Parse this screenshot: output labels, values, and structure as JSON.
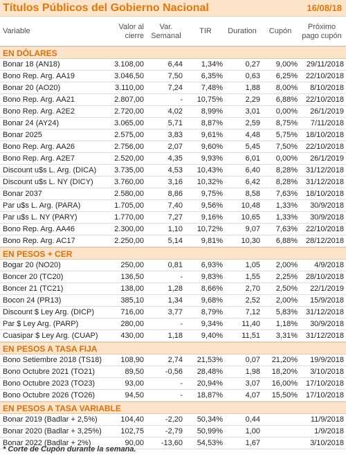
{
  "header": {
    "title": "Títulos Públicos del Gobierno Nacional",
    "date": "16/08/18"
  },
  "columns": {
    "variable": "Variable",
    "cierre": [
      "Valor al",
      "cierre"
    ],
    "var": [
      "Var.",
      "Semanal"
    ],
    "tir": "TIR",
    "duration": "Duration",
    "cupon": "Cupón",
    "proximo": [
      "Próximo",
      "pago cupón"
    ]
  },
  "sections": [
    {
      "title": "EN DÓLARES",
      "rows": [
        [
          "Bonar 18 (AN18)",
          "3.108,00",
          "6,44",
          "1,34%",
          "0,27",
          "9,00%",
          "29/11/2018"
        ],
        [
          "Bono Rep. Arg. AA19",
          "3.046,50",
          "7,50",
          "6,35%",
          "0,63",
          "6,25%",
          "22/10/2018"
        ],
        [
          "Bonar 20 (AO20)",
          "3.110,00",
          "7,24",
          "7,48%",
          "1,88",
          "8,00%",
          "8/10/2018"
        ],
        [
          "Bono Rep. Arg. AA21",
          "2.807,00",
          "-",
          "10,75%",
          "2,29",
          "6,88%",
          "22/10/2018"
        ],
        [
          "Bono Rep. Arg. A2E2",
          "2.720,00",
          "4,02",
          "8,99%",
          "3,01",
          "0,00%",
          "26/1/2019"
        ],
        [
          "Bonar 24 (AY24)",
          "3.065,00",
          "5,71",
          "8,87%",
          "2,59",
          "8,75%",
          "7/11/2018"
        ],
        [
          "Bonar 2025",
          "2.575,00",
          "3,83",
          "9,61%",
          "4,48",
          "5,75%",
          "18/10/2018"
        ],
        [
          "Bono Rep. Arg. AA26",
          "2.756,00",
          "2,07",
          "9,60%",
          "5,45",
          "7,50%",
          "22/10/2018"
        ],
        [
          "Bono Rep. Arg. A2E7",
          "2.520,00",
          "4,35",
          "9,93%",
          "6,01",
          "0,00%",
          "26/1/2019"
        ],
        [
          "Discount u$s L. Arg. (DICA)",
          "3.735,00",
          "4,53",
          "10,43%",
          "6,40",
          "8,28%",
          "31/12/2018"
        ],
        [
          "Discount u$s L. NY (DICY)",
          "3.760,00",
          "3,16",
          "10,32%",
          "6,42",
          "8,28%",
          "31/12/2018"
        ],
        [
          "Bonar 2037",
          "2.580,00",
          "8,86",
          "9,75%",
          "8,58",
          "7,63%",
          "18/10/2018"
        ],
        [
          "Par u$s L. Arg. (PARA)",
          "1.705,00",
          "7,40",
          "9,56%",
          "10,48",
          "1,33%",
          "30/9/2018"
        ],
        [
          "Par u$s L. NY (PARY)",
          "1.770,00",
          "7,27",
          "9,16%",
          "10,65",
          "1,33%",
          "30/9/2018"
        ],
        [
          "Bono Rep. Arg. AA46",
          "2.300,00",
          "1,10",
          "10,72%",
          "9,07",
          "7,63%",
          "22/10/2018"
        ],
        [
          "Bono Rep. Arg. AC17",
          "2.250,00",
          "5,14",
          "9,81%",
          "10,30",
          "6,88%",
          "28/12/2018"
        ]
      ]
    },
    {
      "title": "EN PESOS + CER",
      "rows": [
        [
          "Bogar 20 (NO20)",
          "250,00",
          "0,81",
          "6,93%",
          "1,05",
          "2,00%",
          "4/9/2018"
        ],
        [
          "Boncer 20 (TC20)",
          "136,50",
          "-",
          "9,83%",
          "1,55",
          "2,25%",
          "28/10/2018"
        ],
        [
          "Boncer 21 (TC21)",
          "138,00",
          "1,28",
          "8,66%",
          "2,70",
          "2,50%",
          "22/1/2019"
        ],
        [
          "Bocon 24 (PR13)",
          "385,10",
          "1,34",
          "9,68%",
          "2,52",
          "2,00%",
          "15/9/2018"
        ],
        [
          "Discount $ Ley Arg. (DICP)",
          "716,00",
          "3,77",
          "8,79%",
          "7,12",
          "5,83%",
          "31/12/2018"
        ],
        [
          "Par $ Ley Arg. (PARP)",
          "280,00",
          "-",
          "9,34%",
          "11,40",
          "1,18%",
          "30/9/2018"
        ],
        [
          "Cuasipar $ Ley Arg. (CUAP)",
          "430,00",
          "1,18",
          "9,40%",
          "11,51",
          "3,31%",
          "31/12/2018"
        ]
      ]
    },
    {
      "title": "EN PESOS A TASA FIJA",
      "rows": [
        [
          "Bono Setiembre 2018 (TS18)",
          "108,90",
          "2,74",
          "21,53%",
          "0,07",
          "21,20%",
          "19/9/2018"
        ],
        [
          "Bono Octubre 2021 (TO21)",
          "89,50",
          "-0,56",
          "28,48%",
          "1,98",
          "18,20%",
          "3/10/2018"
        ],
        [
          "Bono Octubre 2023 (TO23)",
          "93,00",
          "-",
          "20,94%",
          "3,07",
          "16,00%",
          "17/10/2018"
        ],
        [
          "Bono Octubre 2026 (TO26)",
          "94,50",
          "-",
          "18,87%",
          "4,07",
          "15,50%",
          "17/10/2018"
        ]
      ]
    },
    {
      "title": "EN PESOS A TASA VARIABLE",
      "rows": [
        [
          "Bonar 2019 (Badlar + 2,5%)",
          "104,40",
          "-2,20",
          "50,34%",
          "0,44",
          "",
          "11/9/2018"
        ],
        [
          "Bonar 2020 (Badlar + 3,25%)",
          "102,75",
          "-2,79",
          "50,99%",
          "1,00",
          "",
          "1/9/2018"
        ],
        [
          "Bonar 2022 (Badlar + 2%)",
          "90,00",
          "-13,60",
          "54,53%",
          "1,67",
          "",
          "3/10/2018"
        ]
      ]
    }
  ],
  "footnote": "* Corte de Cupón durante la semana."
}
